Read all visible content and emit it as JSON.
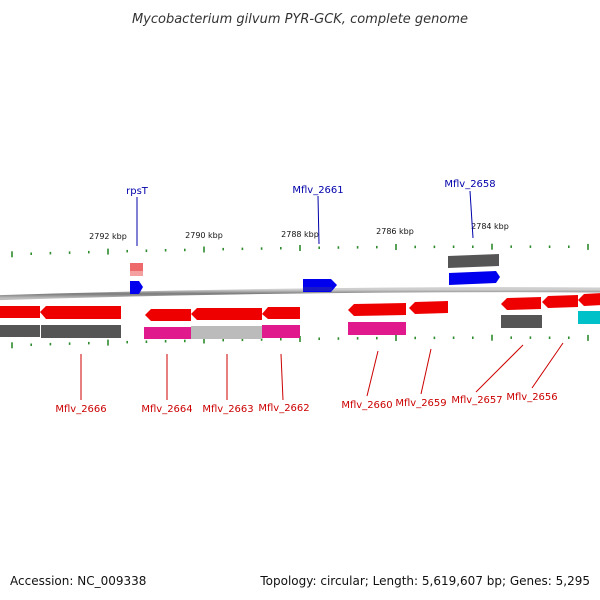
{
  "title": "Mycobacterium gilvum PYR-GCK, complete genome",
  "footer": {
    "accession": "Accession: NC_009338",
    "topology": "Topology: circular; Length: 5,619,607 bp; Genes: 5,295"
  },
  "colors": {
    "backbone": "#888888",
    "tick": "#2e8b2e",
    "gene_red": "#ee0000",
    "gene_blue": "#0000ee",
    "gene_pink": "#e0198c",
    "gene_grey": "#555555",
    "gene_lightgrey": "#bbbbbb",
    "gene_cyan": "#00c0c8",
    "gene_salmon": "#ee6a6a",
    "label_top": "#0000aa",
    "label_bottom": "#cc0000"
  },
  "kbp_labels": [
    "2792 kbp",
    "2790 kbp",
    "2788 kbp",
    "2786 kbp",
    "2784 kbp"
  ],
  "top_labels": [
    "rpsT",
    "Mflv_2661",
    "Mflv_2658"
  ],
  "bottom_labels": [
    "Mflv_2666",
    "Mflv_2664",
    "Mflv_2663",
    "Mflv_2662",
    "Mflv_2660",
    "Mflv_2659",
    "Mflv_2657",
    "Mflv_2656"
  ]
}
